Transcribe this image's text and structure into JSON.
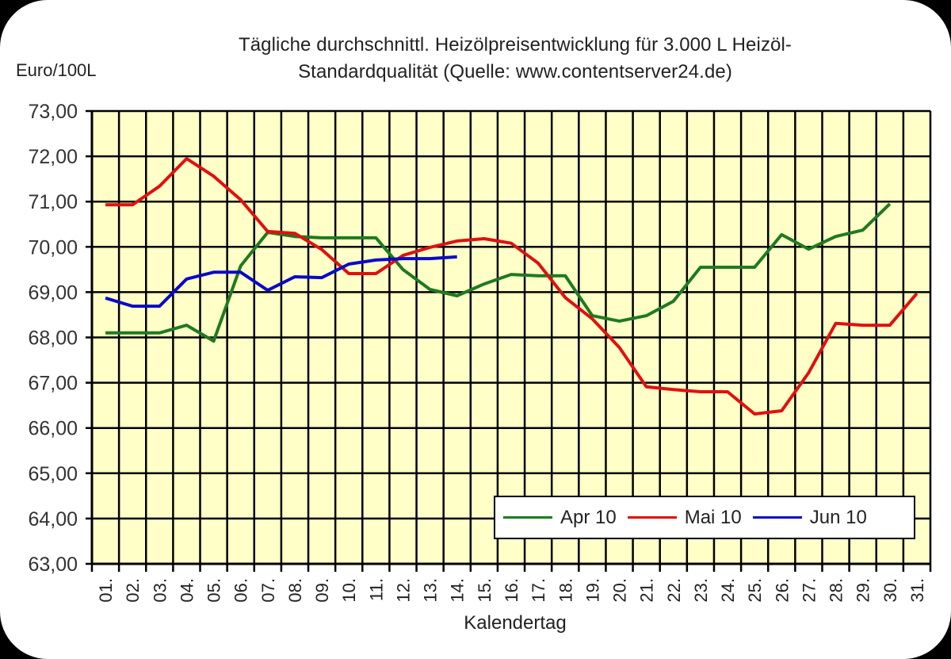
{
  "chart_data": {
    "type": "line",
    "title": "Tägliche durchschnittl. Heizölpreisentwicklung für 3.000 L Heizöl-Standardqualität (Quelle: www.contentserver24.de)",
    "title_lines": [
      "Tägliche durchschnittl. Heizölpreisentwicklung für 3.000 L Heizöl-",
      "Standardqualität (Quelle: www.contentserver24.de)"
    ],
    "xlabel": "Kalendertag",
    "ylabel": "Euro/100L",
    "ylim": [
      63,
      73
    ],
    "yticks": [
      "73,00",
      "72,00",
      "71,00",
      "70,00",
      "69,00",
      "68,00",
      "67,00",
      "66,00",
      "65,00",
      "64,00",
      "63,00"
    ],
    "categories": [
      "01.",
      "02.",
      "03.",
      "04.",
      "05.",
      "06.",
      "07.",
      "08.",
      "09.",
      "10.",
      "11.",
      "12.",
      "13.",
      "14.",
      "15.",
      "16.",
      "17.",
      "18.",
      "19.",
      "20.",
      "21.",
      "22.",
      "23.",
      "24.",
      "25.",
      "26.",
      "27.",
      "28.",
      "29.",
      "30.",
      "31."
    ],
    "grid": true,
    "legend_position": "bottom-right inside",
    "series": [
      {
        "name": "Apr 10",
        "color": "#1f7a1f",
        "values": [
          68.1,
          68.1,
          68.1,
          68.27,
          67.92,
          69.58,
          70.32,
          70.23,
          70.2,
          70.2,
          70.2,
          69.5,
          69.06,
          68.92,
          69.18,
          69.39,
          69.36,
          69.36,
          68.48,
          68.36,
          68.48,
          68.8,
          69.55,
          69.55,
          69.55,
          70.27,
          69.95,
          70.23,
          70.37,
          70.95,
          null
        ]
      },
      {
        "name": "Mai 10",
        "color": "#e01010",
        "values": [
          70.93,
          70.93,
          71.34,
          71.95,
          71.56,
          71.04,
          70.34,
          70.3,
          69.94,
          69.41,
          69.41,
          69.81,
          69.99,
          70.13,
          70.18,
          70.08,
          69.64,
          68.88,
          68.41,
          67.78,
          66.91,
          66.85,
          66.8,
          66.8,
          66.31,
          66.38,
          67.22,
          68.31,
          68.27,
          68.27,
          68.97
        ]
      },
      {
        "name": "Jun 10",
        "color": "#0a0ac8",
        "values": [
          68.87,
          68.69,
          68.69,
          69.29,
          69.44,
          69.44,
          69.04,
          69.34,
          69.32,
          69.62,
          69.71,
          69.74,
          69.74,
          69.78,
          null,
          null,
          null,
          null,
          null,
          null,
          null,
          null,
          null,
          null,
          null,
          null,
          null,
          null,
          null,
          null,
          null
        ]
      }
    ]
  },
  "colors": {
    "plot_background": "#ffffc8",
    "grid": "#000000"
  }
}
